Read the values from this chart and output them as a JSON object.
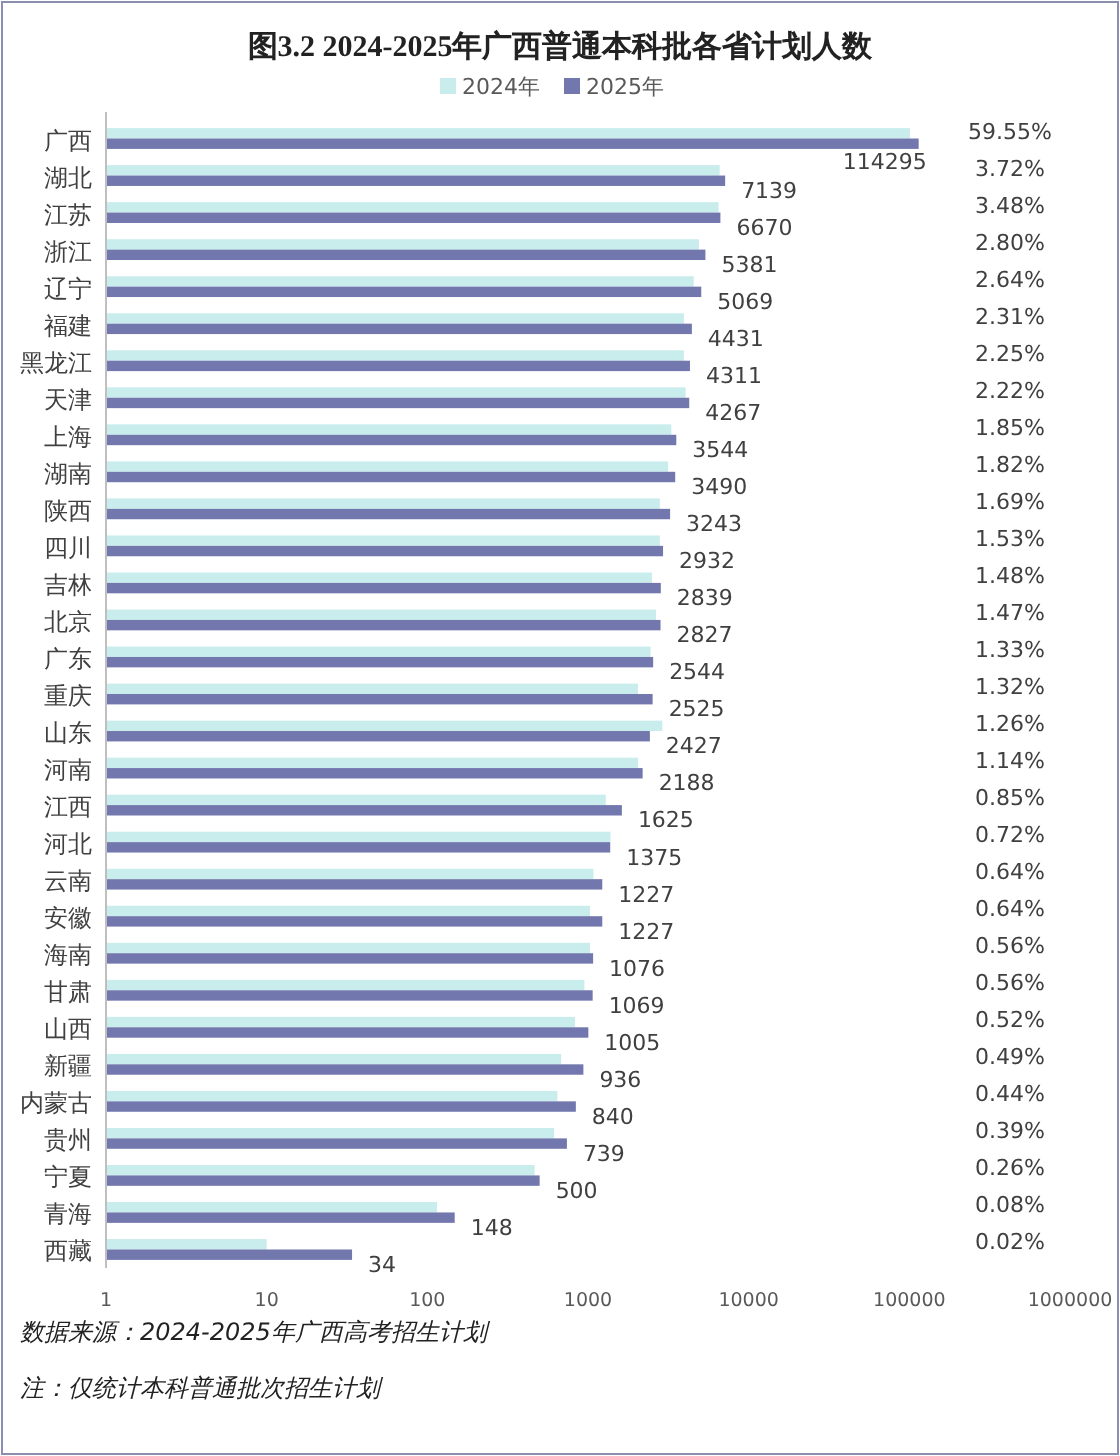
{
  "chart_data": {
    "type": "bar",
    "orientation": "horizontal",
    "title": "图3.2 2024-2025年广西普通本科批各省计划人数",
    "log": "x",
    "xlim": [
      1,
      1000000
    ],
    "xticks": [
      1,
      10,
      100,
      1000,
      10000,
      100000,
      1000000
    ],
    "grid": false,
    "legend": "top",
    "categories": [
      "广西",
      "湖北",
      "江苏",
      "浙江",
      "辽宁",
      "福建",
      "黑龙江",
      "天津",
      "上海",
      "湖南",
      "陕西",
      "四川",
      "吉林",
      "北京",
      "广东",
      "重庆",
      "山东",
      "河南",
      "江西",
      "河北",
      "云南",
      "安徽",
      "海南",
      "甘肃",
      "山西",
      "新疆",
      "内蒙古",
      "贵州",
      "宁夏",
      "青海",
      "西藏"
    ],
    "series": [
      {
        "name": "2024年",
        "color": "#c9ecec",
        "values": [
          101000,
          6600,
          6500,
          4900,
          4550,
          3950,
          3950,
          4050,
          3300,
          3150,
          2800,
          2800,
          2500,
          2650,
          2450,
          2050,
          2900,
          2050,
          1290,
          1380,
          1080,
          1030,
          1030,
          950,
          830,
          680,
          645,
          615,
          465,
          115,
          10
        ]
      },
      {
        "name": "2025年",
        "color": "#7277ad",
        "data_labels": true,
        "values": [
          114295,
          7139,
          6670,
          5381,
          5069,
          4431,
          4311,
          4267,
          3544,
          3490,
          3243,
          2932,
          2839,
          2827,
          2544,
          2525,
          2427,
          2188,
          1625,
          1375,
          1227,
          1227,
          1076,
          1069,
          1005,
          936,
          840,
          739,
          500,
          148,
          34
        ]
      }
    ],
    "annotations": [
      "59.55%",
      "3.72%",
      "3.48%",
      "2.80%",
      "2.64%",
      "2.31%",
      "2.25%",
      "2.22%",
      "1.85%",
      "1.82%",
      "1.69%",
      "1.53%",
      "1.48%",
      "1.47%",
      "1.33%",
      "1.32%",
      "1.26%",
      "1.14%",
      "0.85%",
      "0.72%",
      "0.64%",
      "0.64%",
      "0.56%",
      "0.56%",
      "0.52%",
      "0.49%",
      "0.44%",
      "0.39%",
      "0.26%",
      "0.08%",
      "0.02%",
      "数据来源：2024-2025年广西高考招生计划",
      "注：仅统计本科普通批次招生计划"
    ]
  }
}
